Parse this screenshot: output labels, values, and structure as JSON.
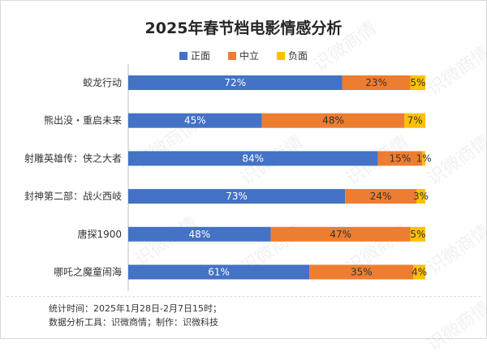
{
  "title": "2025年春节档电影情感分析",
  "watermark_text": "识微商情",
  "footer": {
    "line1": "统计时间：2025年1月28日-2月7日15时；",
    "line2": "数据分析工具：识微商情；制作：识微科技"
  },
  "colors": {
    "positive": "#4472C4",
    "neutral": "#ED7D31",
    "negative": "#FFC000"
  },
  "chart_data": {
    "type": "bar",
    "stacked": true,
    "orientation": "horizontal",
    "percent": true,
    "title": "2025年春节档电影情感分析",
    "legend_position": "top",
    "categories": [
      "蛟龙行动",
      "熊出没・重启未来",
      "射雕英雄传：侠之大者",
      "封神第二部：战火西岐",
      "唐探1900",
      "哪吒之魔童闹海"
    ],
    "series": [
      {
        "name": "正面",
        "values": [
          72,
          45,
          84,
          73,
          48,
          61
        ],
        "labels": [
          "72%",
          "45%",
          "84%",
          "73%",
          "48%",
          "61%"
        ]
      },
      {
        "name": "中立",
        "values": [
          23,
          48,
          15,
          24,
          47,
          35
        ],
        "labels": [
          "23%",
          "48%",
          "15%",
          "24%",
          "47%",
          "35%"
        ]
      },
      {
        "name": "负面",
        "values": [
          5,
          7,
          1,
          3,
          5,
          4
        ],
        "labels": [
          "5%",
          "7%",
          "1%",
          "3%",
          "5%",
          "4%"
        ]
      }
    ]
  }
}
